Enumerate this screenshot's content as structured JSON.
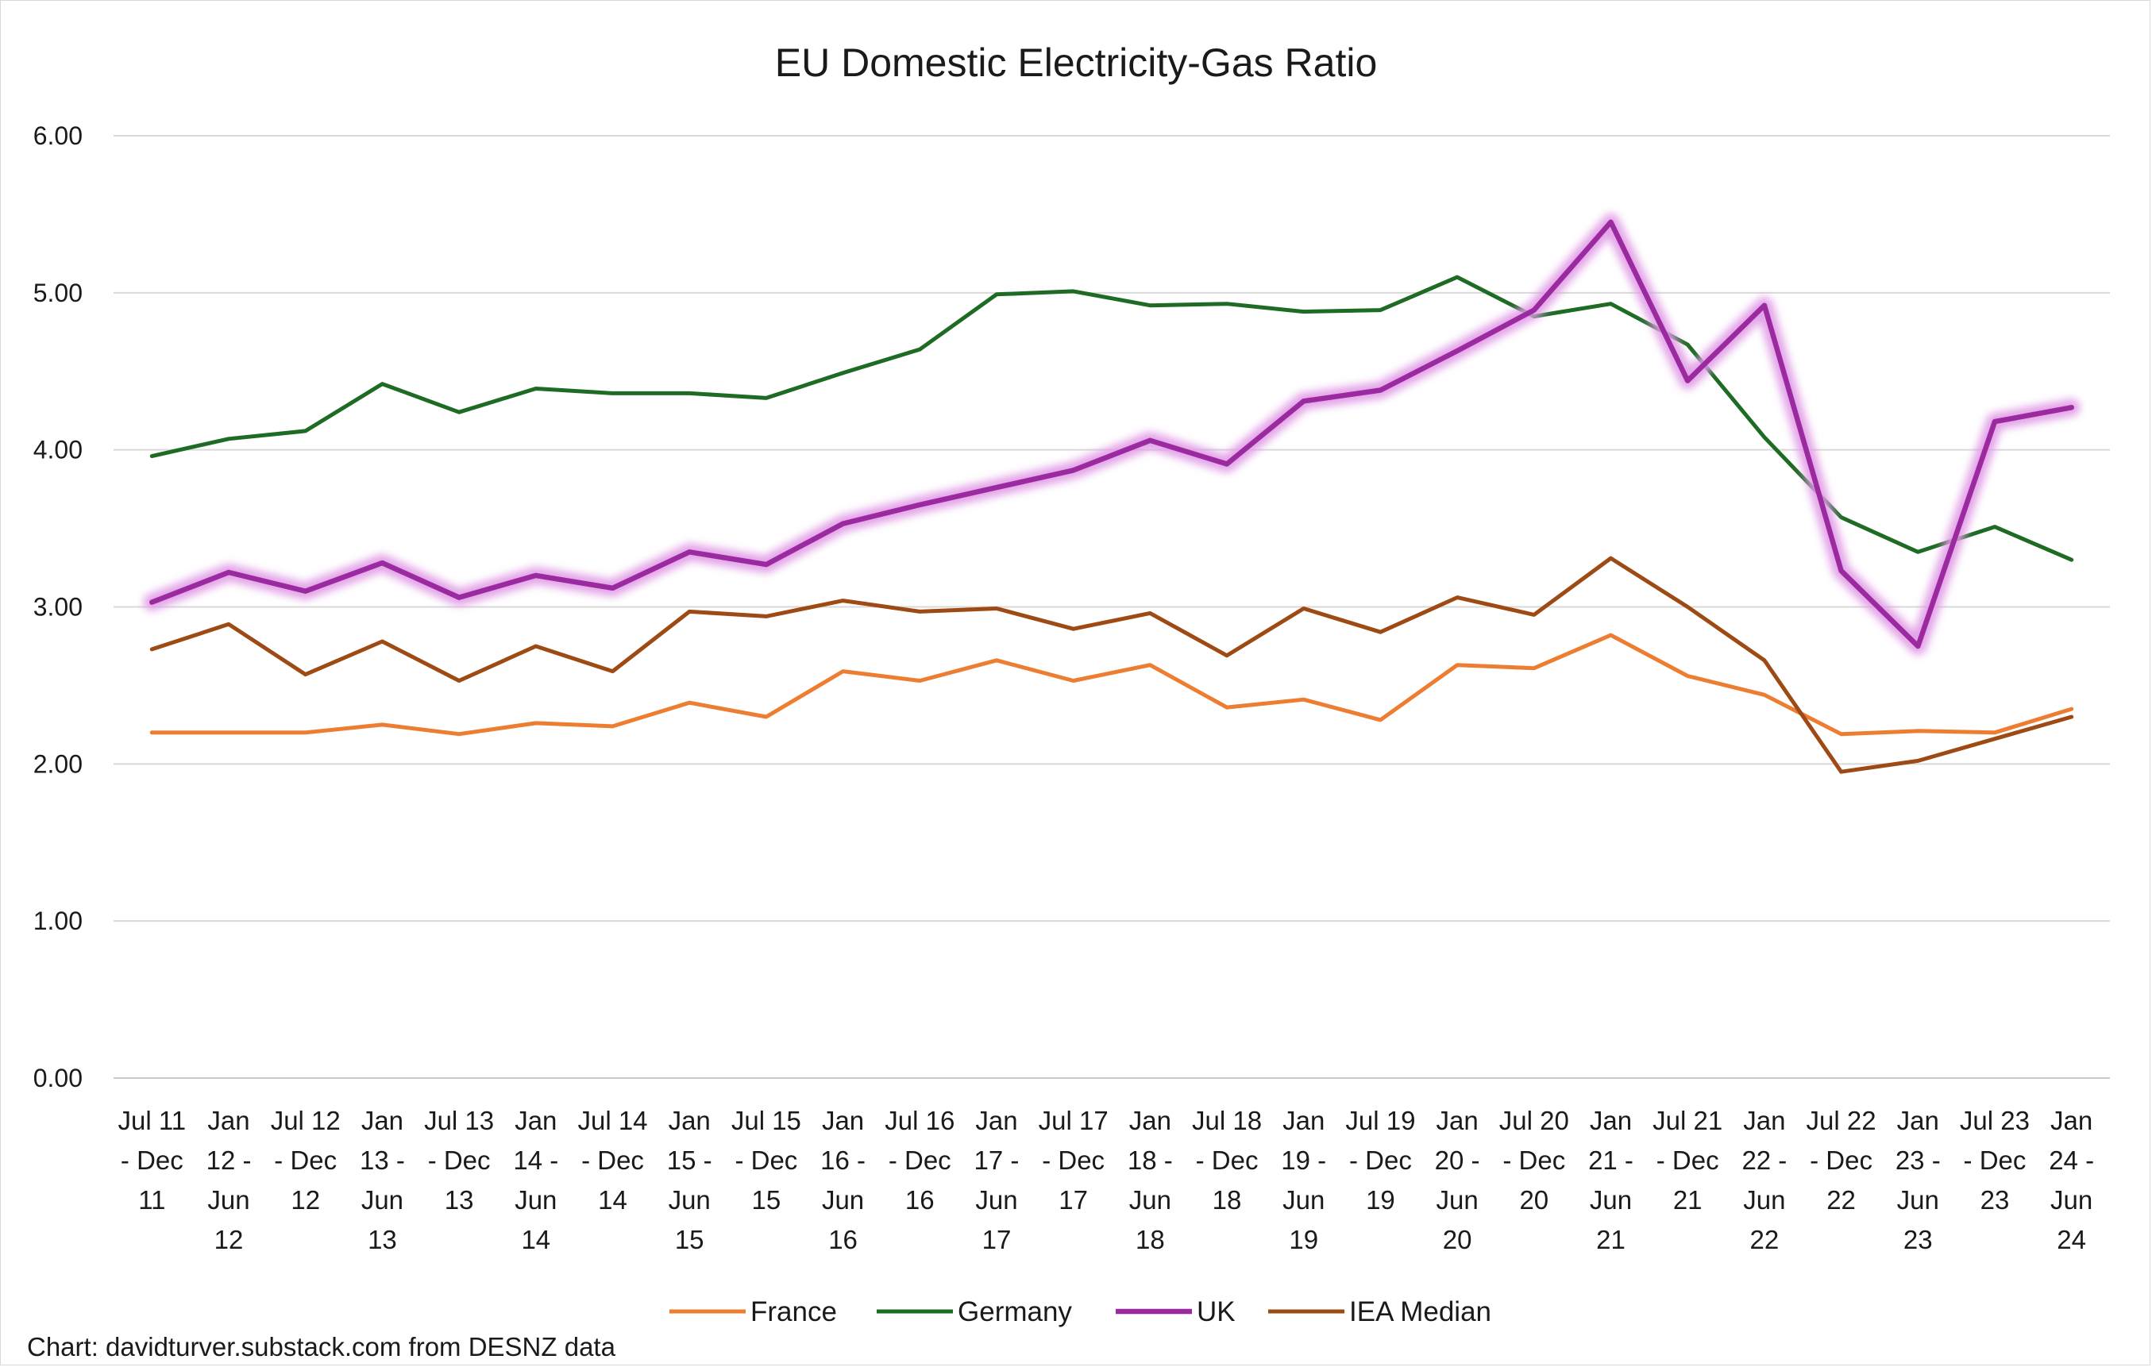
{
  "chart_data": {
    "type": "line",
    "title": "EU Domestic Electricity-Gas Ratio",
    "source": "Chart: davidturver.substack.com from DESNZ data",
    "xlabel": "",
    "ylabel": "",
    "ylim": [
      0,
      6
    ],
    "yticks": [
      "0.00",
      "1.00",
      "2.00",
      "3.00",
      "4.00",
      "5.00",
      "6.00"
    ],
    "grid": true,
    "legend_position": "bottom",
    "categories": [
      [
        "Jul 11",
        "- Dec",
        "11"
      ],
      [
        "Jan",
        "12 -",
        "Jun",
        "12"
      ],
      [
        "Jul 12",
        "- Dec",
        "12"
      ],
      [
        "Jan",
        "13 -",
        "Jun",
        "13"
      ],
      [
        "Jul 13",
        "- Dec",
        "13"
      ],
      [
        "Jan",
        "14 -",
        "Jun",
        "14"
      ],
      [
        "Jul 14",
        "- Dec",
        "14"
      ],
      [
        "Jan",
        "15 -",
        "Jun",
        "15"
      ],
      [
        "Jul 15",
        "- Dec",
        "15"
      ],
      [
        "Jan",
        "16 -",
        "Jun",
        "16"
      ],
      [
        "Jul 16",
        "- Dec",
        "16"
      ],
      [
        "Jan",
        "17 -",
        "Jun",
        "17"
      ],
      [
        "Jul 17",
        "- Dec",
        "17"
      ],
      [
        "Jan",
        "18 -",
        "Jun",
        "18"
      ],
      [
        "Jul 18",
        "- Dec",
        "18"
      ],
      [
        "Jan",
        "19 -",
        "Jun",
        "19"
      ],
      [
        "Jul 19",
        "- Dec",
        "19"
      ],
      [
        "Jan",
        "20 -",
        "Jun",
        "20"
      ],
      [
        "Jul 20",
        "- Dec",
        "20"
      ],
      [
        "Jan",
        "21 -",
        "Jun",
        "21"
      ],
      [
        "Jul 21",
        "- Dec",
        "21"
      ],
      [
        "Jan",
        "22 -",
        "Jun",
        "22"
      ],
      [
        "Jul 22",
        "- Dec",
        "22"
      ],
      [
        "Jan",
        "23 -",
        "Jun",
        "23"
      ],
      [
        "Jul 23",
        "- Dec",
        "23"
      ],
      [
        "Jan",
        "24 -",
        "Jun",
        "24"
      ]
    ],
    "series": [
      {
        "name": "France",
        "color": "#ED7D31",
        "glow": false,
        "values": [
          2.2,
          2.2,
          2.2,
          2.25,
          2.19,
          2.26,
          2.24,
          2.39,
          2.3,
          2.59,
          2.53,
          2.66,
          2.53,
          2.63,
          2.36,
          2.41,
          2.28,
          2.63,
          2.61,
          2.82,
          2.56,
          2.44,
          2.19,
          2.21,
          2.2,
          2.35
        ]
      },
      {
        "name": "Germany",
        "color": "#1E6B24",
        "glow": false,
        "values": [
          3.96,
          4.07,
          4.12,
          4.42,
          4.24,
          4.39,
          4.36,
          4.36,
          4.33,
          4.49,
          4.64,
          4.99,
          5.01,
          4.92,
          4.93,
          4.88,
          4.89,
          5.1,
          4.85,
          4.93,
          4.67,
          4.08,
          3.57,
          3.35,
          3.51,
          3.3
        ]
      },
      {
        "name": "UK",
        "color": "#9B2AA0",
        "glow": true,
        "values": [
          3.03,
          3.22,
          3.1,
          3.28,
          3.06,
          3.2,
          3.12,
          3.35,
          3.27,
          3.53,
          3.65,
          3.76,
          3.87,
          4.06,
          3.91,
          4.31,
          4.38,
          4.63,
          4.89,
          5.45,
          4.44,
          4.92,
          3.23,
          2.75,
          4.18,
          4.27
        ]
      },
      {
        "name": "IEA Median",
        "color": "#9E4A14",
        "glow": false,
        "values": [
          2.73,
          2.89,
          2.57,
          2.78,
          2.53,
          2.75,
          2.59,
          2.97,
          2.94,
          3.04,
          2.97,
          2.99,
          2.86,
          2.96,
          2.69,
          2.99,
          2.84,
          3.06,
          2.95,
          3.31,
          3.0,
          2.66,
          1.95,
          2.02,
          2.16,
          2.3
        ]
      }
    ]
  }
}
